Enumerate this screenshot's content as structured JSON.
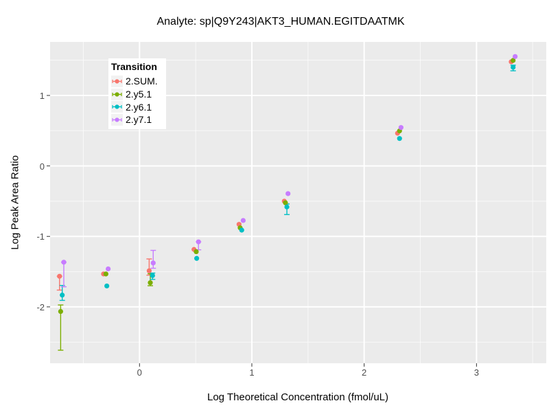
{
  "chart_data": {
    "type": "scatter",
    "title": "Analyte: sp|Q9Y243|AKT3_HUMAN.EGITDAATMK",
    "xlabel": "Log Theoretical Concentration (fmol/uL)",
    "ylabel": "Log Peak Area Ratio",
    "legend_title": "Transition",
    "legend_position": "inset top-left",
    "grid": true,
    "panel_bg": "#EBEBEB",
    "grid_color": "#FFFFFF",
    "tick_label_color": "#4D4D4D",
    "xlim": [
      -0.796,
      3.621
    ],
    "ylim": [
      -2.8,
      1.76
    ],
    "x_major_ticks": [
      {
        "v": 0,
        "label": "0"
      },
      {
        "v": 1,
        "label": "1"
      },
      {
        "v": 2,
        "label": "2"
      },
      {
        "v": 3,
        "label": "3"
      }
    ],
    "y_major_ticks": [
      {
        "v": 1,
        "label": "1"
      },
      {
        "v": 0,
        "label": "0"
      },
      {
        "v": -1,
        "label": "-1"
      },
      {
        "v": -2,
        "label": "-2"
      }
    ],
    "x_minor_ticks": [
      -0.5,
      0.5,
      1.5,
      2.5,
      3.5
    ],
    "y_minor_ticks": [
      -2.5,
      -1.5,
      -0.5,
      0.5,
      1.5
    ],
    "series": [
      {
        "name": "2.SUM.",
        "color": "#F8766D",
        "points": [
          {
            "x": -0.712,
            "y": -1.566,
            "lo": -1.762,
            "hi": -1.566
          },
          {
            "x": -0.32,
            "y": -1.533,
            "lo": null,
            "hi": null
          },
          {
            "x": 0.086,
            "y": -1.488,
            "lo": -1.55,
            "hi": -1.32
          },
          {
            "x": 0.485,
            "y": -1.185,
            "lo": null,
            "hi": null
          },
          {
            "x": 0.886,
            "y": -0.829,
            "lo": null,
            "hi": null
          },
          {
            "x": 1.289,
            "y": -0.5,
            "lo": null,
            "hi": null
          },
          {
            "x": 2.297,
            "y": 0.464,
            "lo": null,
            "hi": null
          },
          {
            "x": 3.309,
            "y": 1.478,
            "lo": null,
            "hi": null
          }
        ]
      },
      {
        "name": "2.y5.1",
        "color": "#7CAE00",
        "points": [
          {
            "x": -0.702,
            "y": -2.065,
            "lo": -2.615,
            "hi": -1.973
          },
          {
            "x": -0.299,
            "y": -1.533,
            "lo": null,
            "hi": null
          },
          {
            "x": 0.096,
            "y": -1.657,
            "lo": -1.7,
            "hi": -1.53
          },
          {
            "x": 0.505,
            "y": -1.217,
            "lo": null,
            "hi": null
          },
          {
            "x": 0.896,
            "y": -0.878,
            "lo": null,
            "hi": null
          },
          {
            "x": 1.299,
            "y": -0.523,
            "lo": null,
            "hi": null
          },
          {
            "x": 2.315,
            "y": 0.497,
            "lo": null,
            "hi": null
          },
          {
            "x": 3.326,
            "y": 1.497,
            "lo": null,
            "hi": null
          }
        ]
      },
      {
        "name": "2.y6.1",
        "color": "#00BFC4",
        "points": [
          {
            "x": -0.688,
            "y": -1.833,
            "lo": -1.908,
            "hi": -1.696
          },
          {
            "x": -0.291,
            "y": -1.703,
            "lo": null,
            "hi": null
          },
          {
            "x": 0.116,
            "y": -1.556,
            "lo": -1.61,
            "hi": -1.52
          },
          {
            "x": 0.509,
            "y": -1.312,
            "lo": null,
            "hi": null
          },
          {
            "x": 0.91,
            "y": -0.911,
            "lo": null,
            "hi": null
          },
          {
            "x": 1.312,
            "y": -0.582,
            "lo": -0.69,
            "hi": -0.54
          },
          {
            "x": 2.315,
            "y": 0.389,
            "lo": null,
            "hi": null
          },
          {
            "x": 3.326,
            "y": 1.4,
            "lo": 1.35,
            "hi": 1.43
          }
        ]
      },
      {
        "name": "2.y7.1",
        "color": "#C77CFF",
        "points": [
          {
            "x": -0.674,
            "y": -1.366,
            "lo": -1.715,
            "hi": -1.366
          },
          {
            "x": -0.279,
            "y": -1.461,
            "lo": null,
            "hi": null
          },
          {
            "x": 0.122,
            "y": -1.377,
            "lo": -1.452,
            "hi": -1.198
          },
          {
            "x": 0.525,
            "y": -1.077,
            "lo": -1.19,
            "hi": -1.077
          },
          {
            "x": 0.923,
            "y": -0.774,
            "lo": null,
            "hi": null
          },
          {
            "x": 1.322,
            "y": -0.393,
            "lo": null,
            "hi": null
          },
          {
            "x": 2.328,
            "y": 0.545,
            "lo": null,
            "hi": null
          },
          {
            "x": 3.344,
            "y": 1.552,
            "lo": null,
            "hi": null
          }
        ]
      }
    ]
  }
}
